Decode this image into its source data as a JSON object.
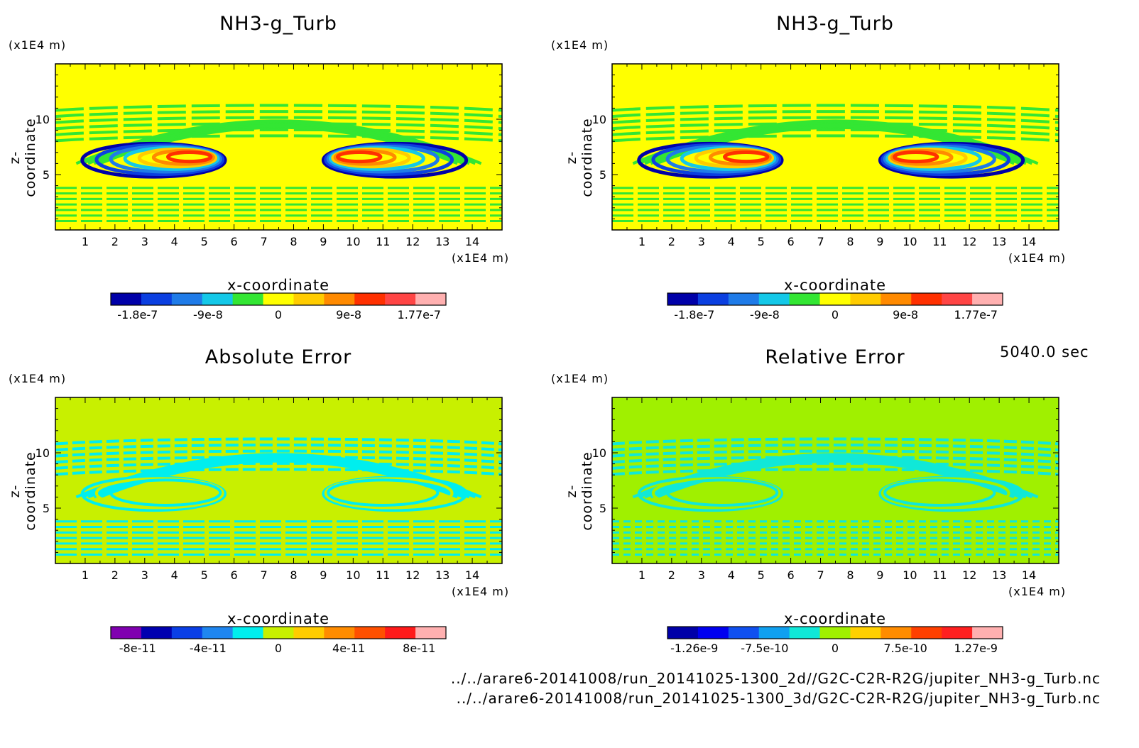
{
  "chart_data": [
    {
      "type": "heatmap",
      "title": "NH3-g_Turb",
      "xlabel": "x-coordinate",
      "ylabel": "z-coordinate",
      "x_unit": "(x1E4 m)",
      "y_unit": "(x1E4 m)",
      "xlim": [
        0,
        15
      ],
      "ylim": [
        0,
        15
      ],
      "x_ticks": [
        "1",
        "2",
        "3",
        "4",
        "5",
        "6",
        "7",
        "8",
        "9",
        "10",
        "11",
        "12",
        "13",
        "14"
      ],
      "y_ticks": [
        "5",
        "10"
      ],
      "colorbar": {
        "colors": [
          "#0000a8",
          "#0b3fe0",
          "#1f7be8",
          "#14c8e8",
          "#33e633",
          "#ffff00",
          "#ffcc00",
          "#ff8a00",
          "#ff3000",
          "#ff4545",
          "#ffb0b0"
        ],
        "labels": [
          "-1.8e-7",
          "-9e-8",
          "0",
          "9e-8",
          "1.77e-7"
        ]
      }
    },
    {
      "type": "heatmap",
      "title": "NH3-g_Turb",
      "xlabel": "x-coordinate",
      "ylabel": "z-coordinate",
      "x_unit": "(x1E4 m)",
      "y_unit": "(x1E4 m)",
      "xlim": [
        0,
        15
      ],
      "ylim": [
        0,
        15
      ],
      "x_ticks": [
        "1",
        "2",
        "3",
        "4",
        "5",
        "6",
        "7",
        "8",
        "9",
        "10",
        "11",
        "12",
        "13",
        "14"
      ],
      "y_ticks": [
        "5",
        "10"
      ],
      "colorbar": {
        "colors": [
          "#0000a8",
          "#0b3fe0",
          "#1f7be8",
          "#14c8e8",
          "#33e633",
          "#ffff00",
          "#ffcc00",
          "#ff8a00",
          "#ff3000",
          "#ff4545",
          "#ffb0b0"
        ],
        "labels": [
          "-1.8e-7",
          "-9e-8",
          "0",
          "9e-8",
          "1.77e-7"
        ]
      }
    },
    {
      "type": "heatmap",
      "title": "Absolute Error",
      "xlabel": "x-coordinate",
      "ylabel": "z-coordinate",
      "x_unit": "(x1E4 m)",
      "y_unit": "(x1E4 m)",
      "xlim": [
        0,
        15
      ],
      "ylim": [
        0,
        15
      ],
      "x_ticks": [
        "1",
        "2",
        "3",
        "4",
        "5",
        "6",
        "7",
        "8",
        "9",
        "10",
        "11",
        "12",
        "13",
        "14"
      ],
      "y_ticks": [
        "5",
        "10"
      ],
      "colorbar": {
        "colors": [
          "#8000b0",
          "#0000b0",
          "#0a3fe6",
          "#1f86f0",
          "#00eeee",
          "#c8f000",
          "#ffcc00",
          "#ff8c00",
          "#ff5000",
          "#ff1a1a",
          "#ffb0b0"
        ],
        "labels": [
          "-8e-11",
          "-4e-11",
          "0",
          "4e-11",
          "8e-11"
        ]
      }
    },
    {
      "type": "heatmap",
      "title": "Relative Error",
      "xlabel": "x-coordinate",
      "ylabel": "z-coordinate",
      "x_unit": "(x1E4 m)",
      "y_unit": "(x1E4 m)",
      "xlim": [
        0,
        15
      ],
      "ylim": [
        0,
        15
      ],
      "x_ticks": [
        "1",
        "2",
        "3",
        "4",
        "5",
        "6",
        "7",
        "8",
        "9",
        "10",
        "11",
        "12",
        "13",
        "14"
      ],
      "y_ticks": [
        "5",
        "10"
      ],
      "colorbar": {
        "colors": [
          "#0000a8",
          "#0000f0",
          "#1050f0",
          "#10a0f0",
          "#10e8d8",
          "#a0f000",
          "#ffd000",
          "#ff8c00",
          "#ff4000",
          "#ff2020",
          "#ffb0b0"
        ],
        "labels": [
          "-1.26e-9",
          "-7.5e-10",
          "0",
          "7.5e-10",
          "1.27e-9"
        ]
      }
    }
  ],
  "time_label": "5040.0 sec",
  "file_paths": [
    "../../arare6-20141008/run_20141025-1300_2d//G2C-C2R-R2G/jupiter_NH3-g_Turb.nc",
    "../../arare6-20141008/run_20141025-1300_3d/G2C-C2R-R2G/jupiter_NH3-g_Turb.nc"
  ]
}
